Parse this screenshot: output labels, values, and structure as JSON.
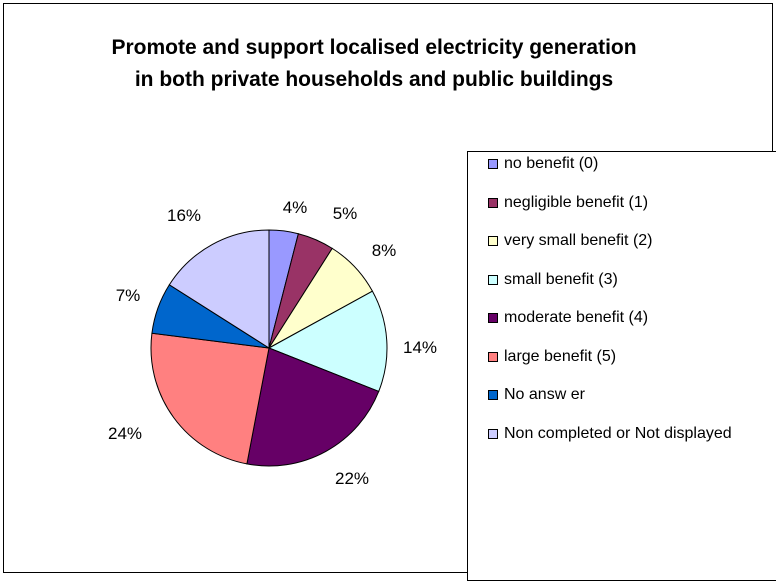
{
  "chart_data": {
    "type": "pie",
    "title": "Promote and support localised electricity generation in both private households and public buildings",
    "categories": [
      "no benefit (0)",
      "negligible benefit (1)",
      "very small benefit (2)",
      "small benefit (3)",
      "moderate benefit (4)",
      "large benefit (5)",
      "No answ er",
      "Non completed or Not displayed"
    ],
    "values": [
      4,
      5,
      8,
      14,
      22,
      24,
      7,
      16
    ],
    "labels": [
      "4%",
      "5%",
      "8%",
      "14%",
      "22%",
      "24%",
      "7%",
      "16%"
    ],
    "colors": [
      "#9999ff",
      "#993366",
      "#ffffcc",
      "#ccffff",
      "#660066",
      "#ff8080",
      "#0066cc",
      "#ccccff"
    ],
    "legend_position": "right"
  }
}
